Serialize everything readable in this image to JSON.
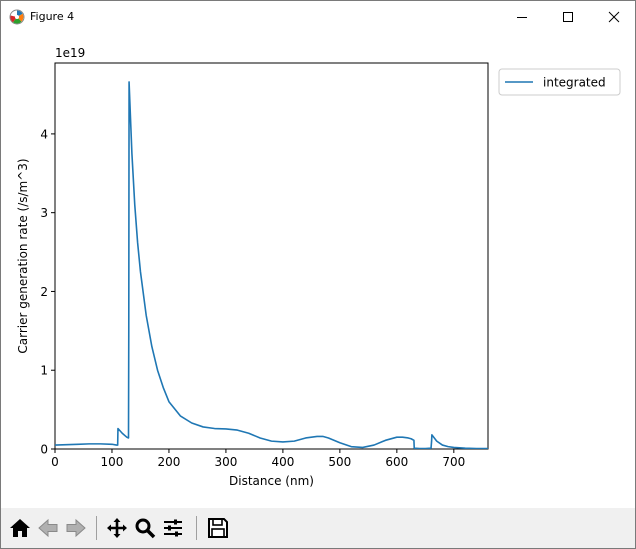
{
  "window": {
    "title": "Figure 4",
    "app_icon": "matplotlib-icon",
    "controls": [
      "minimize-icon",
      "maximize-icon",
      "close-icon"
    ]
  },
  "toolbar": {
    "buttons": [
      "home-icon",
      "back-icon",
      "forward-icon",
      "pan-icon",
      "zoom-icon",
      "configure-subplots-icon",
      "save-icon"
    ]
  },
  "chart_data": {
    "type": "line",
    "title": "",
    "xlabel": "Distance (nm)",
    "ylabel": "Carrier generation rate (/s/m^3)",
    "y_offset_label": "1e19",
    "xlim": [
      0,
      760
    ],
    "ylim": [
      0,
      4.9
    ],
    "xticks": [
      0,
      100,
      200,
      300,
      400,
      500,
      600,
      700
    ],
    "yticks": [
      0,
      1,
      2,
      3,
      4
    ],
    "grid": false,
    "legend_position": "outside-top-right",
    "series": [
      {
        "name": "integrated",
        "color": "#1f77b4",
        "x": [
          0,
          20,
          40,
          60,
          80,
          100,
          108,
          110,
          110.5,
          118,
          126,
          129,
          129.5,
          130,
          135,
          140,
          145,
          150,
          160,
          170,
          180,
          190,
          200,
          220,
          240,
          260,
          280,
          300,
          320,
          340,
          360,
          380,
          400,
          420,
          440,
          460,
          470,
          480,
          500,
          520,
          540,
          560,
          580,
          600,
          610,
          620,
          625,
          630,
          630.5,
          640,
          650,
          660,
          661,
          661.5,
          670,
          680,
          690,
          700,
          720,
          740,
          760
        ],
        "y": [
          0.05,
          0.055,
          0.06,
          0.065,
          0.065,
          0.06,
          0.05,
          0.05,
          0.26,
          0.2,
          0.15,
          0.14,
          1.5,
          4.66,
          3.75,
          3.1,
          2.62,
          2.25,
          1.7,
          1.3,
          1.0,
          0.78,
          0.6,
          0.42,
          0.33,
          0.28,
          0.26,
          0.255,
          0.24,
          0.2,
          0.14,
          0.1,
          0.09,
          0.1,
          0.14,
          0.16,
          0.16,
          0.14,
          0.08,
          0.03,
          0.02,
          0.05,
          0.11,
          0.15,
          0.15,
          0.14,
          0.13,
          0.11,
          0.01,
          0.005,
          0.005,
          0.01,
          0.1,
          0.18,
          0.1,
          0.05,
          0.03,
          0.02,
          0.01,
          0.005,
          0.005
        ]
      }
    ]
  }
}
